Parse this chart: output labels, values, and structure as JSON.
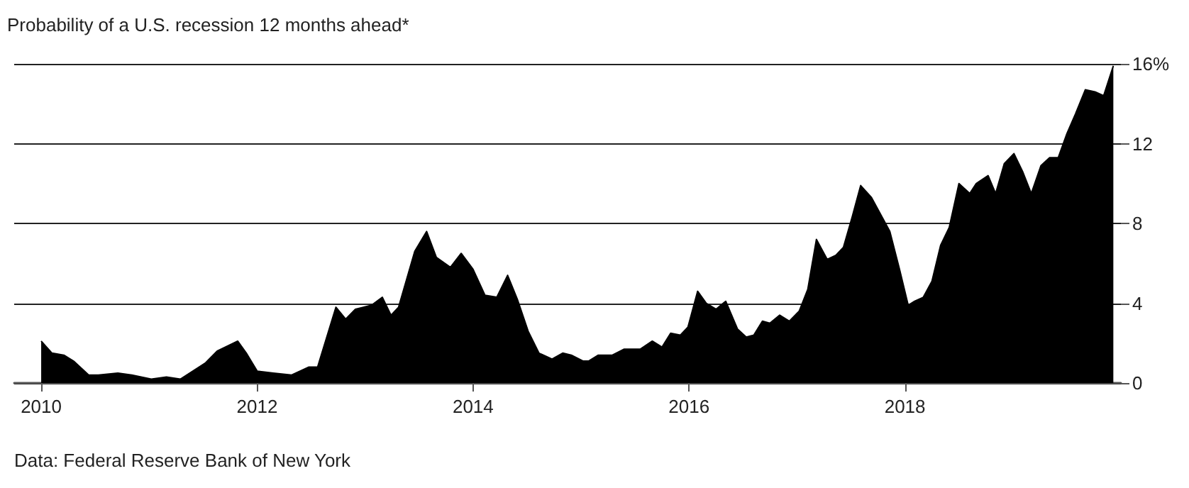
{
  "chart_data": {
    "type": "area",
    "title": "Probability of a U.S. recession 12 months ahead*",
    "annotations": [
      "Data: Federal Reserve Bank of New York"
    ],
    "x": [
      2010.0,
      2010.1,
      2010.21,
      2010.3,
      2010.44,
      2010.53,
      2010.71,
      2010.84,
      2011.02,
      2011.16,
      2011.29,
      2011.52,
      2011.63,
      2011.82,
      2011.9,
      2012.0,
      2012.15,
      2012.32,
      2012.48,
      2012.56,
      2012.73,
      2012.82,
      2012.91,
      2013.06,
      2013.16,
      2013.24,
      2013.31,
      2013.46,
      2013.57,
      2013.66,
      2013.79,
      2013.89,
      2014.0,
      2014.11,
      2014.22,
      2014.32,
      2014.41,
      2014.51,
      2014.61,
      2014.73,
      2014.83,
      2014.91,
      2015.02,
      2015.07,
      2015.16,
      2015.29,
      2015.4,
      2015.55,
      2015.66,
      2015.75,
      2015.83,
      2015.92,
      2015.99,
      2016.08,
      2016.16,
      2016.25,
      2016.34,
      2016.45,
      2016.53,
      2016.6,
      2016.68,
      2016.75,
      2016.84,
      2016.93,
      2017.02,
      2017.1,
      2017.18,
      2017.28,
      2017.36,
      2017.43,
      2017.51,
      2017.59,
      2017.69,
      2017.78,
      2017.86,
      2017.95,
      2018.03,
      2018.09,
      2018.17,
      2018.25,
      2018.33,
      2018.41,
      2018.5,
      2018.6,
      2018.66,
      2018.77,
      2018.84,
      2018.92,
      2019.01,
      2019.09,
      2019.17,
      2019.26,
      2019.34,
      2019.42,
      2019.5,
      2019.58,
      2019.67,
      2019.76,
      2019.84,
      2019.93
    ],
    "series": [
      {
        "color": "#000000",
        "values": [
          2.1,
          1.5,
          1.4,
          1.1,
          0.4,
          0.4,
          0.5,
          0.4,
          0.2,
          0.3,
          0.2,
          1.0,
          1.6,
          2.1,
          1.5,
          0.6,
          0.5,
          0.4,
          0.8,
          0.8,
          3.8,
          3.2,
          3.7,
          3.9,
          4.3,
          3.4,
          3.8,
          6.6,
          7.6,
          6.3,
          5.8,
          6.5,
          5.7,
          4.4,
          4.3,
          5.4,
          4.2,
          2.6,
          1.5,
          1.2,
          1.5,
          1.4,
          1.1,
          1.1,
          1.4,
          1.4,
          1.7,
          1.7,
          2.1,
          1.8,
          2.5,
          2.4,
          2.8,
          4.6,
          4.0,
          3.7,
          4.1,
          2.7,
          2.3,
          2.4,
          3.1,
          3.0,
          3.4,
          3.1,
          3.6,
          4.7,
          7.2,
          6.2,
          6.4,
          6.8,
          8.3,
          9.9,
          9.3,
          8.4,
          7.6,
          5.7,
          3.9,
          4.1,
          4.3,
          5.1,
          6.9,
          7.8,
          10.0,
          9.5,
          10.0,
          10.4,
          9.5,
          11.0,
          11.5,
          10.6,
          9.5,
          10.9,
          11.3,
          11.3,
          12.5,
          13.5,
          14.7,
          14.6,
          14.4,
          15.9
        ]
      }
    ],
    "xlim": [
      2009.75,
      2020
    ],
    "xticks": [
      2010,
      2012,
      2014,
      2016,
      2018
    ],
    "ylim": [
      0,
      16
    ],
    "yticks": [
      0,
      4,
      8,
      12,
      {
        "value": 16,
        "label": "16%"
      }
    ],
    "grid": "y"
  }
}
